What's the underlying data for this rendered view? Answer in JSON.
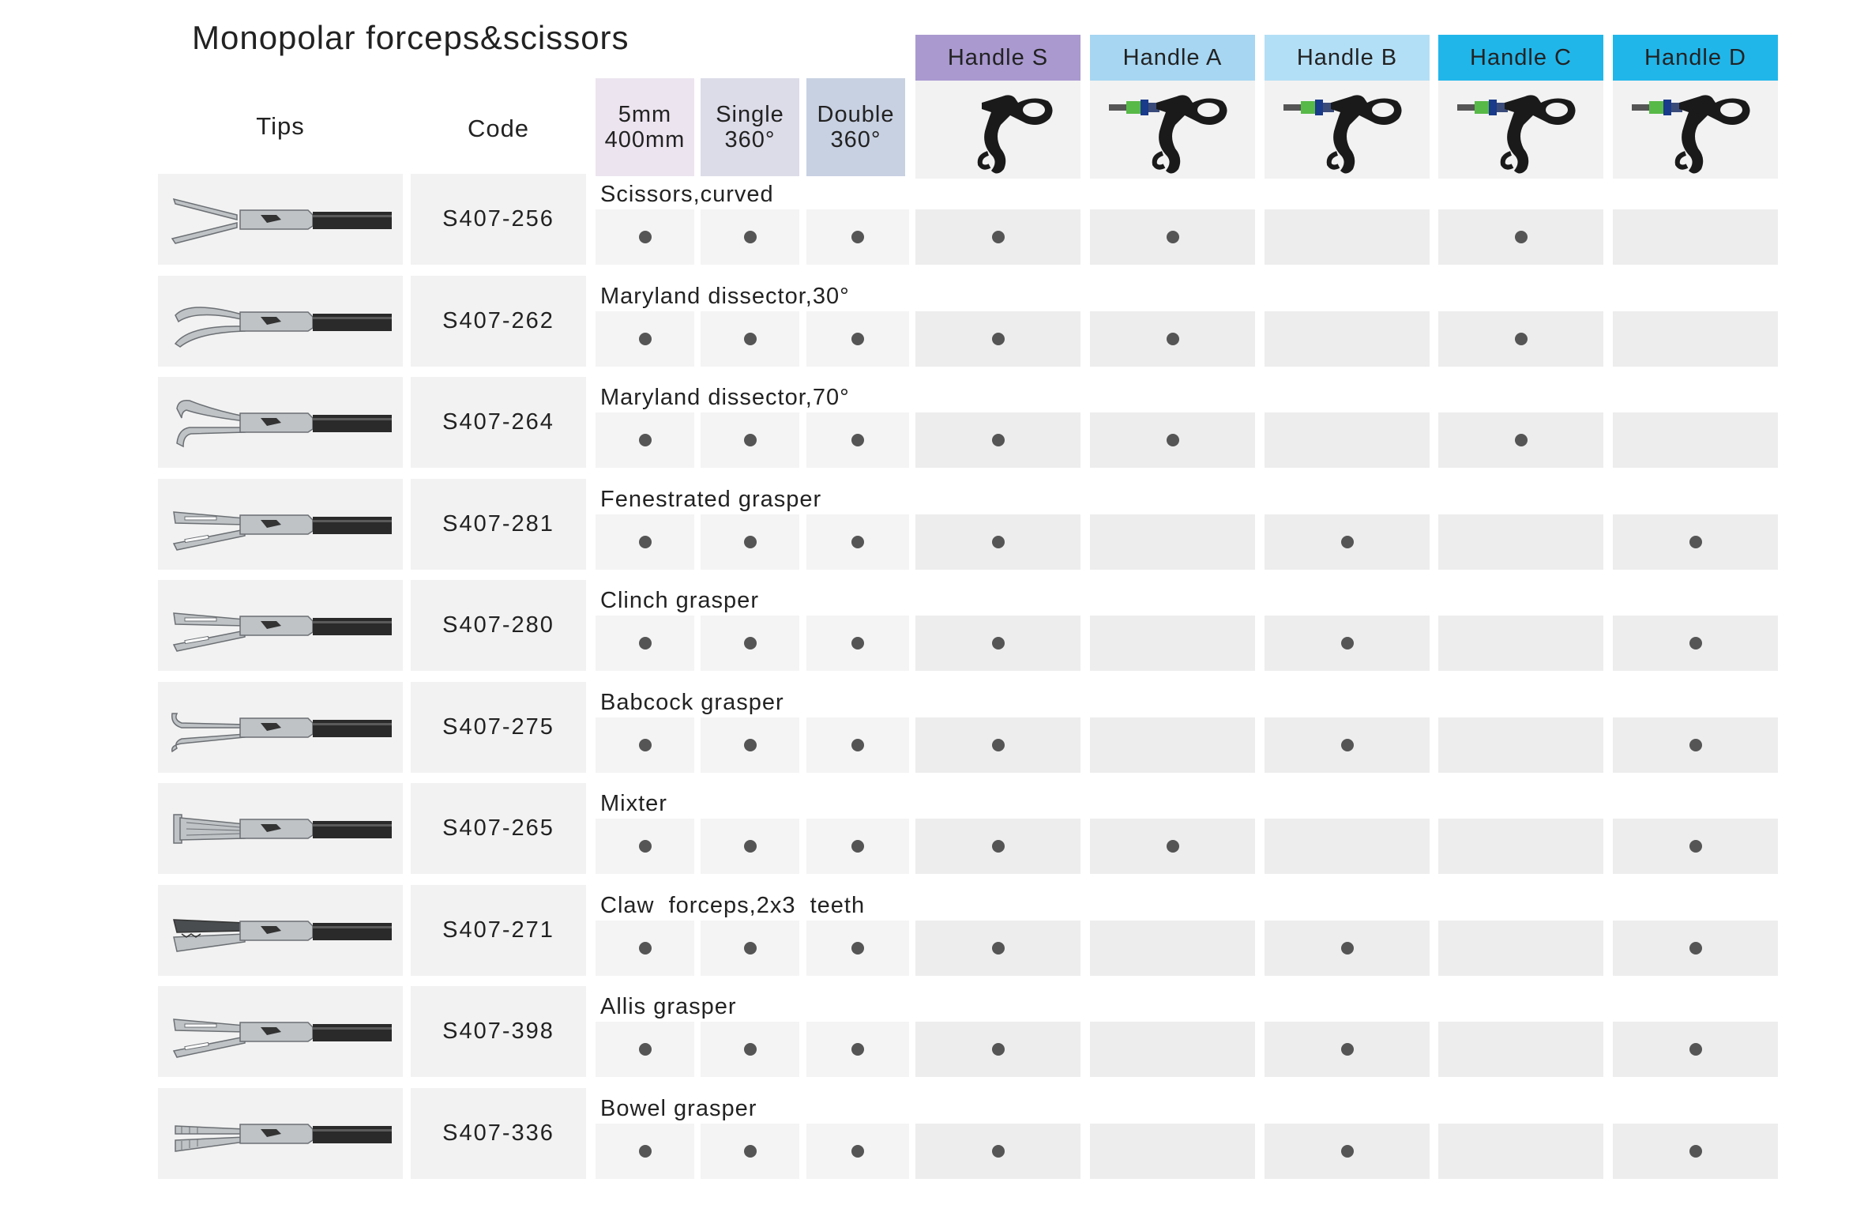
{
  "title": "Monopolar forceps&scissors",
  "headers": {
    "tips": "Tips",
    "code": "Code"
  },
  "spec_columns": [
    {
      "line1": "5mm",
      "line2": "400mm",
      "color": "#ece4ef"
    },
    {
      "line1": "Single",
      "line2": "360°",
      "color": "#dcdbe8"
    },
    {
      "line1": "Double",
      "line2": "360°",
      "color": "#c8d1e2"
    }
  ],
  "handles": [
    {
      "label": "Handle S",
      "color": "#a999cf"
    },
    {
      "label": "Handle A",
      "color": "#a6d6f2"
    },
    {
      "label": "Handle B",
      "color": "#b3dff6"
    },
    {
      "label": "Handle C",
      "color": "#21b6ea"
    },
    {
      "label": "Handle D",
      "color": "#21b6ea"
    }
  ],
  "rows": [
    {
      "name": "Scissors,curved",
      "code": "S407-256",
      "tip": "scissors",
      "marks": [
        1,
        1,
        1,
        1,
        1,
        0,
        1,
        0
      ]
    },
    {
      "name": "Maryland dissector,30°",
      "code": "S407-262",
      "tip": "maryland30",
      "marks": [
        1,
        1,
        1,
        1,
        1,
        0,
        1,
        0
      ]
    },
    {
      "name": "Maryland dissector,70°",
      "code": "S407-264",
      "tip": "maryland70",
      "marks": [
        1,
        1,
        1,
        1,
        1,
        0,
        1,
        0
      ]
    },
    {
      "name": "Fenestrated grasper",
      "code": "S407-281",
      "tip": "fenestrated",
      "marks": [
        1,
        1,
        1,
        1,
        0,
        1,
        0,
        1
      ]
    },
    {
      "name": "Clinch grasper",
      "code": "S407-280",
      "tip": "clinch",
      "marks": [
        1,
        1,
        1,
        1,
        0,
        1,
        0,
        1
      ]
    },
    {
      "name": "Babcock grasper",
      "code": "S407-275",
      "tip": "babcock",
      "marks": [
        1,
        1,
        1,
        1,
        0,
        1,
        0,
        1
      ]
    },
    {
      "name": "Mixter",
      "code": "S407-265",
      "tip": "mixter",
      "marks": [
        1,
        1,
        1,
        1,
        1,
        0,
        0,
        1
      ]
    },
    {
      "name": "Claw  forceps,2x3  teeth",
      "code": "S407-271",
      "tip": "claw",
      "marks": [
        1,
        1,
        1,
        1,
        0,
        1,
        0,
        1
      ]
    },
    {
      "name": "Allis grasper",
      "code": "S407-398",
      "tip": "allis",
      "marks": [
        1,
        1,
        1,
        1,
        0,
        1,
        0,
        1
      ]
    },
    {
      "name": "Bowel grasper",
      "code": "S407-336",
      "tip": "bowel",
      "marks": [
        1,
        1,
        1,
        1,
        0,
        1,
        0,
        1
      ]
    }
  ],
  "cell_colors": {
    "spec_cell": "#f4f4f4",
    "handle_cell": "#ededed",
    "dot": "#555555"
  },
  "icons": {
    "tip": "instrument-tip-icon",
    "handle": "handle-icon"
  }
}
